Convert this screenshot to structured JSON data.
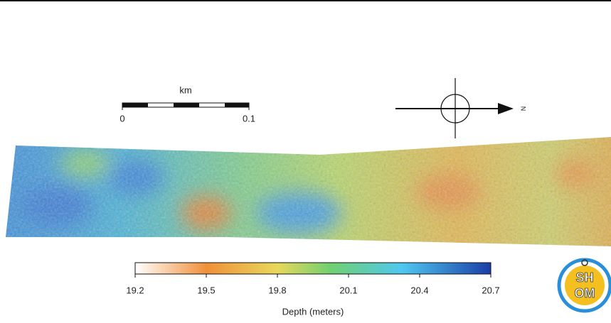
{
  "scale_bar": {
    "unit": "km",
    "ticks": [
      0,
      0.1
    ]
  },
  "north": "N",
  "colorbar": {
    "title": "Depth (meters)",
    "range": [
      19.2,
      20.7
    ],
    "ticks": [
      19.2,
      19.5,
      19.8,
      20.1,
      20.4,
      20.7
    ]
  },
  "logo": {
    "top": "SH",
    "bottom": "OM"
  }
}
